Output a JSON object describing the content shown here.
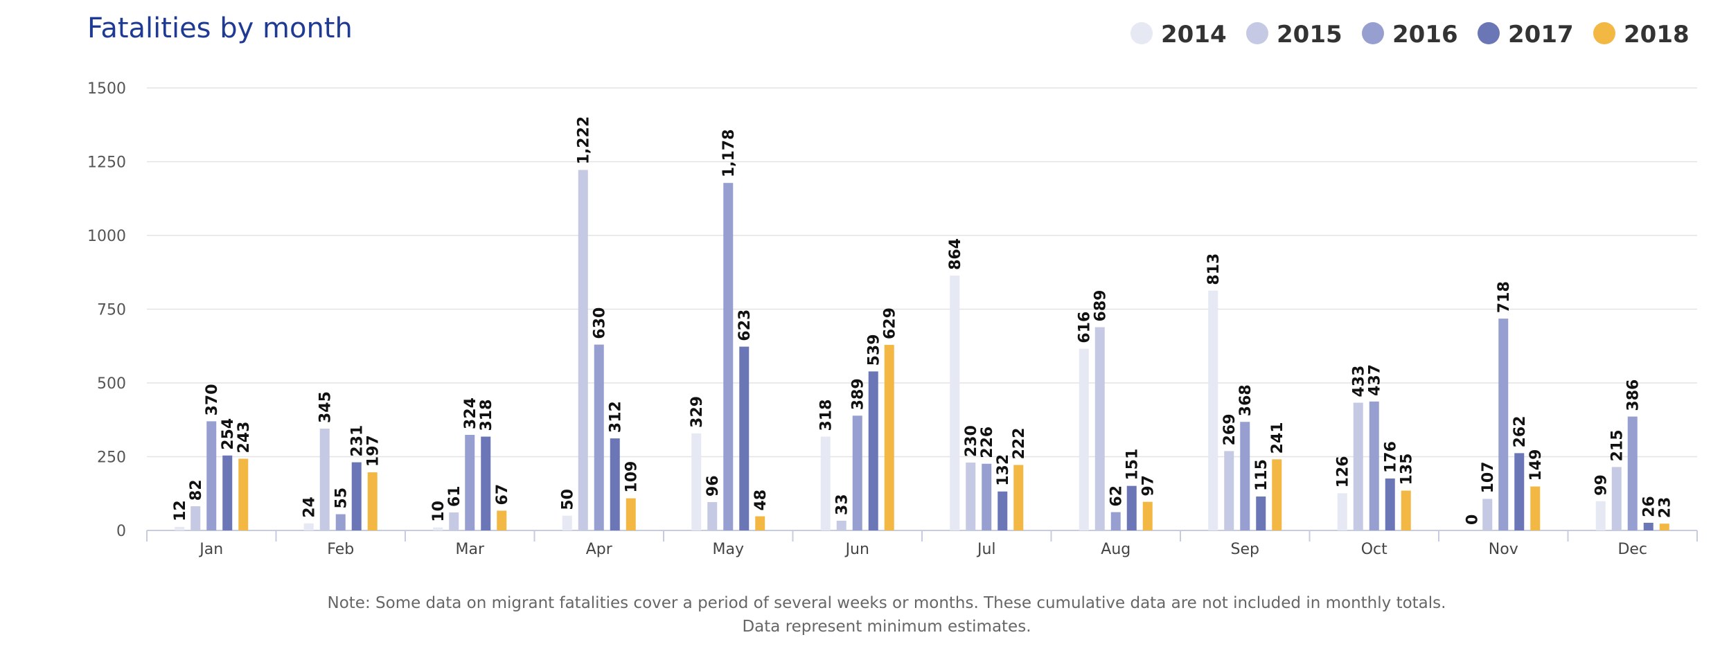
{
  "chart_data": {
    "type": "bar",
    "title": "Fatalities by month",
    "xlabel": "",
    "ylabel": "",
    "ylim": [
      0,
      1500
    ],
    "yticks": [
      "0",
      "250",
      "500",
      "750",
      "1000",
      "1250",
      "1500"
    ],
    "grid": true,
    "legend_position": "top-right",
    "categories": [
      "Jan",
      "Feb",
      "Mar",
      "Apr",
      "May",
      "Jun",
      "Jul",
      "Aug",
      "Sep",
      "Oct",
      "Nov",
      "Dec"
    ],
    "series": [
      {
        "name": "2014",
        "color": "#e6e8f3",
        "values": [
          12,
          24,
          10,
          50,
          329,
          318,
          864,
          616,
          813,
          126,
          0,
          99
        ],
        "labels": [
          "12",
          "24",
          "10",
          "50",
          "329",
          "318",
          "864",
          "616",
          "813",
          "126",
          "0",
          "99"
        ]
      },
      {
        "name": "2015",
        "color": "#c5c9e3",
        "values": [
          82,
          345,
          61,
          1222,
          96,
          33,
          230,
          689,
          269,
          433,
          107,
          215
        ],
        "labels": [
          "82",
          "345",
          "61",
          "1,222",
          "96",
          "33",
          "230",
          "689",
          "269",
          "433",
          "107",
          "215"
        ]
      },
      {
        "name": "2016",
        "color": "#979fd0",
        "values": [
          370,
          55,
          324,
          630,
          1178,
          389,
          226,
          62,
          368,
          437,
          718,
          386
        ],
        "labels": [
          "370",
          "55",
          "324",
          "630",
          "1,178",
          "389",
          "226",
          "62",
          "368",
          "437",
          "718",
          "386"
        ]
      },
      {
        "name": "2017",
        "color": "#6a76b5",
        "values": [
          254,
          231,
          318,
          312,
          623,
          539,
          132,
          151,
          115,
          176,
          262,
          26
        ],
        "labels": [
          "254",
          "231",
          "318",
          "312",
          "623",
          "539",
          "132",
          "151",
          "115",
          "176",
          "262",
          "26"
        ]
      },
      {
        "name": "2018",
        "color": "#f2b843",
        "values": [
          243,
          197,
          67,
          109,
          48,
          629,
          222,
          97,
          241,
          135,
          149,
          23
        ],
        "labels": [
          "243",
          "197",
          "67",
          "109",
          "48",
          "629",
          "222",
          "97",
          "241",
          "135",
          "149",
          "23"
        ]
      }
    ]
  },
  "note": {
    "line1": "Note: Some data on migrant fatalities cover a period of several weeks or months. These cumulative data are not included in monthly totals.",
    "line2": "Data represent minimum estimates."
  }
}
